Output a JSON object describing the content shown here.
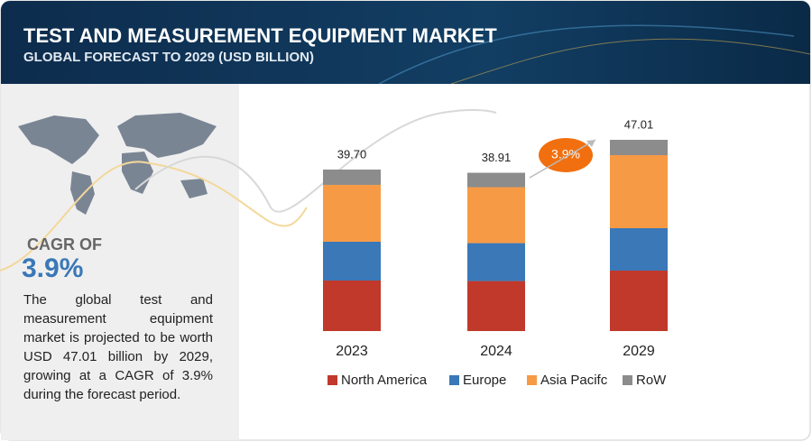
{
  "header": {
    "title": "TEST AND MEASUREMENT EQUIPMENT MARKET",
    "subtitle": "GLOBAL FORECAST TO 2029 (USD BILLION)"
  },
  "sidebar": {
    "cagr_label": "CAGR OF",
    "cagr_value": "3.9%",
    "text": "The global test and measurement equipment market is projected to be worth USD 47.01 billion by 2029, growing at a CAGR of 3.9% during the forecast period."
  },
  "chart_data": {
    "type": "stacked_bar",
    "categories": [
      "2023",
      "2024",
      "2029"
    ],
    "series": [
      {
        "name": "North America",
        "color": "#c0392b",
        "values": [
          12.42,
          12.29,
          14.86
        ]
      },
      {
        "name": "Europe",
        "color": "#3a78b8",
        "values": [
          9.54,
          9.32,
          10.42
        ]
      },
      {
        "name": "Asia Pacifc",
        "color": "#f79a45",
        "values": [
          13.97,
          13.75,
          17.96
        ]
      },
      {
        "name": "RoW",
        "color": "#8c8c8c",
        "values": [
          3.77,
          3.55,
          3.77
        ]
      }
    ],
    "totals": [
      {
        "value": 39.7,
        "label": "39.70"
      },
      {
        "value": 38.91,
        "label": "38.91"
      },
      {
        "value": 47.01,
        "label": "47.01"
      }
    ],
    "cagr_badge": "3.9%"
  }
}
